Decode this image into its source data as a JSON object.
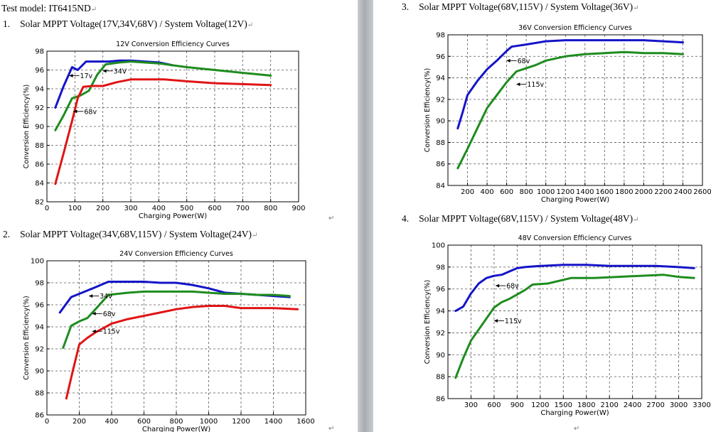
{
  "document": {
    "test_model": "Test model: IT6415ND",
    "para_mark": "↵",
    "sections": [
      {
        "num": "1.",
        "heading": "Solar MPPT Voltage(17V,34V,68V) / System Voltage(12V)"
      },
      {
        "num": "2.",
        "heading": "Solar MPPT Voltage(34V,68V,115V) / System Voltage(24V)"
      },
      {
        "num": "3.",
        "heading": "Solar MPPT Voltage(68V,115V) / System Voltage(36V)"
      },
      {
        "num": "4.",
        "heading": "Solar MPPT Voltage(68V,115V) / System Voltage(48V)"
      }
    ]
  },
  "chart_data": [
    {
      "type": "line",
      "title": "12V Conversion Efficiency Curves",
      "xlabel": "Charging Power(W)",
      "ylabel": "Conversion Efficiency(%)",
      "xlim": [
        0,
        900
      ],
      "ylim": [
        82,
        98
      ],
      "xticks": [
        0,
        100,
        200,
        300,
        400,
        500,
        600,
        700,
        800,
        900
      ],
      "yticks": [
        82,
        84,
        86,
        88,
        90,
        92,
        94,
        96,
        98
      ],
      "grid": true,
      "series": [
        {
          "name": "17V",
          "color": "#1414c8",
          "points": [
            [
              30,
              92
            ],
            [
              60,
              94.3
            ],
            [
              90,
              96.3
            ],
            [
              110,
              96.0
            ],
            [
              140,
              96.9
            ],
            [
              170,
              96.9
            ],
            [
              220,
              96.9
            ],
            [
              260,
              97.0
            ],
            [
              300,
              97.0
            ],
            [
              350,
              96.9
            ],
            [
              400,
              96.8
            ],
            [
              450,
              96.5
            ]
          ]
        },
        {
          "name": "34V",
          "color": "#1e8c1e",
          "points": [
            [
              30,
              89.6
            ],
            [
              60,
              91.2
            ],
            [
              90,
              93.0
            ],
            [
              120,
              93.3
            ],
            [
              150,
              93.8
            ],
            [
              180,
              95.5
            ],
            [
              210,
              96.6
            ],
            [
              260,
              96.8
            ],
            [
              300,
              96.9
            ],
            [
              400,
              96.7
            ],
            [
              500,
              96.3
            ],
            [
              600,
              96.0
            ],
            [
              700,
              95.7
            ],
            [
              800,
              95.4
            ]
          ]
        },
        {
          "name": "68V",
          "color": "#e01414",
          "points": [
            [
              30,
              83.9
            ],
            [
              60,
              87.2
            ],
            [
              90,
              90.6
            ],
            [
              110,
              93.0
            ],
            [
              130,
              94.2
            ],
            [
              160,
              94.3
            ],
            [
              200,
              94.3
            ],
            [
              250,
              94.7
            ],
            [
              300,
              95.0
            ],
            [
              350,
              95.0
            ],
            [
              420,
              95.0
            ],
            [
              500,
              94.8
            ],
            [
              600,
              94.6
            ],
            [
              700,
              94.5
            ],
            [
              800,
              94.4
            ]
          ]
        }
      ],
      "annotations": [
        {
          "text": "17v",
          "at": [
            80,
            95.4
          ]
        },
        {
          "text": "34V",
          "at": [
            200,
            95.9
          ]
        },
        {
          "text": "68v",
          "at": [
            95,
            91.6
          ]
        }
      ]
    },
    {
      "type": "line",
      "title": "24V Conversion Efficiency Curves",
      "xlabel": "Charging Power(W)",
      "ylabel": "Conversion Efficiency(%)",
      "xlim": [
        0,
        1600
      ],
      "ylim": [
        86,
        100
      ],
      "xticks": [
        0,
        200,
        400,
        600,
        800,
        1000,
        1200,
        1400,
        1600
      ],
      "yticks": [
        86,
        88,
        90,
        92,
        94,
        96,
        98,
        100
      ],
      "grid": true,
      "series": [
        {
          "name": "34V",
          "color": "#1414c8",
          "points": [
            [
              80,
              95.3
            ],
            [
              150,
              96.7
            ],
            [
              200,
              97.0
            ],
            [
              250,
              97.3
            ],
            [
              300,
              97.6
            ],
            [
              380,
              98.1
            ],
            [
              500,
              98.1
            ],
            [
              600,
              98.1
            ],
            [
              700,
              98.0
            ],
            [
              800,
              98.0
            ],
            [
              900,
              97.8
            ],
            [
              1000,
              97.5
            ],
            [
              1100,
              97.1
            ],
            [
              1200,
              97.0
            ],
            [
              1300,
              96.9
            ],
            [
              1400,
              96.8
            ],
            [
              1500,
              96.7
            ]
          ]
        },
        {
          "name": "68V",
          "color": "#1e8c1e",
          "points": [
            [
              100,
              92.1
            ],
            [
              150,
              94.1
            ],
            [
              200,
              94.5
            ],
            [
              250,
              94.8
            ],
            [
              300,
              95.6
            ],
            [
              380,
              96.9
            ],
            [
              500,
              97.1
            ],
            [
              600,
              97.2
            ],
            [
              700,
              97.2
            ],
            [
              800,
              97.2
            ],
            [
              900,
              97.2
            ],
            [
              1000,
              97.1
            ],
            [
              1100,
              97.0
            ],
            [
              1200,
              97.0
            ],
            [
              1300,
              96.9
            ],
            [
              1400,
              96.9
            ],
            [
              1500,
              96.8
            ]
          ]
        },
        {
          "name": "115V",
          "color": "#e01414",
          "points": [
            [
              120,
              87.5
            ],
            [
              160,
              90.0
            ],
            [
              200,
              92.4
            ],
            [
              250,
              93.0
            ],
            [
              300,
              93.5
            ],
            [
              400,
              94.3
            ],
            [
              500,
              94.7
            ],
            [
              600,
              95.0
            ],
            [
              700,
              95.3
            ],
            [
              800,
              95.6
            ],
            [
              900,
              95.8
            ],
            [
              1000,
              95.9
            ],
            [
              1100,
              95.9
            ],
            [
              1200,
              95.7
            ],
            [
              1300,
              95.7
            ],
            [
              1400,
              95.7
            ],
            [
              1550,
              95.6
            ]
          ]
        }
      ],
      "annotations": [
        {
          "text": "34v",
          "at": [
            260,
            96.8
          ]
        },
        {
          "text": "68v",
          "at": [
            280,
            95.2
          ]
        },
        {
          "text": "115v",
          "at": [
            280,
            93.6
          ]
        }
      ]
    },
    {
      "type": "line",
      "title": "36V Conversion Efficiency Curves",
      "xlabel": "Charging Power(W)",
      "ylabel": "Conversion Efficiency(%)",
      "xlim": [
        0,
        2600
      ],
      "ylim": [
        84,
        98
      ],
      "xticks": [
        200,
        400,
        600,
        800,
        1000,
        1200,
        1400,
        1600,
        1800,
        2000,
        2200,
        2400,
        2600
      ],
      "yticks": [
        84,
        86,
        88,
        90,
        92,
        94,
        96,
        98
      ],
      "grid": true,
      "series": [
        {
          "name": "68V",
          "color": "#1414c8",
          "points": [
            [
              100,
              89.3
            ],
            [
              150,
              90.8
            ],
            [
              200,
              92.4
            ],
            [
              300,
              93.7
            ],
            [
              400,
              94.8
            ],
            [
              500,
              95.6
            ],
            [
              600,
              96.5
            ],
            [
              650,
              96.9
            ],
            [
              800,
              97.1
            ],
            [
              1000,
              97.4
            ],
            [
              1200,
              97.5
            ],
            [
              1400,
              97.5
            ],
            [
              1600,
              97.5
            ],
            [
              1800,
              97.5
            ],
            [
              2000,
              97.5
            ],
            [
              2200,
              97.4
            ],
            [
              2400,
              97.3
            ]
          ]
        },
        {
          "name": "115V",
          "color": "#1e8c1e",
          "points": [
            [
              100,
              85.6
            ],
            [
              200,
              87.4
            ],
            [
              300,
              89.3
            ],
            [
              400,
              91.2
            ],
            [
              500,
              92.4
            ],
            [
              600,
              93.6
            ],
            [
              700,
              94.6
            ],
            [
              800,
              94.9
            ],
            [
              900,
              95.2
            ],
            [
              1000,
              95.6
            ],
            [
              1200,
              96.0
            ],
            [
              1400,
              96.2
            ],
            [
              1600,
              96.3
            ],
            [
              1800,
              96.4
            ],
            [
              2000,
              96.3
            ],
            [
              2200,
              96.3
            ],
            [
              2400,
              96.2
            ]
          ]
        }
      ],
      "annotations": [
        {
          "text": "68v",
          "at": [
            600,
            95.6
          ]
        },
        {
          "text": "115v",
          "at": [
            700,
            93.4
          ]
        }
      ]
    },
    {
      "type": "line",
      "title": "48V Conversion Efficiency Curves",
      "xlabel": "Charging Power(W)",
      "ylabel": "Conversion Efficiency(%)",
      "xlim": [
        0,
        3300
      ],
      "ylim": [
        86,
        100
      ],
      "xticks": [
        300,
        600,
        900,
        1200,
        1500,
        1800,
        2100,
        2400,
        2700,
        3000,
        3300
      ],
      "yticks": [
        86,
        88,
        90,
        92,
        94,
        96,
        98,
        100
      ],
      "grid": true,
      "series": [
        {
          "name": "68V",
          "color": "#1414c8",
          "points": [
            [
              100,
              94.0
            ],
            [
              200,
              94.4
            ],
            [
              300,
              95.6
            ],
            [
              400,
              96.5
            ],
            [
              500,
              97.0
            ],
            [
              600,
              97.2
            ],
            [
              700,
              97.3
            ],
            [
              800,
              97.6
            ],
            [
              900,
              97.9
            ],
            [
              1000,
              98.0
            ],
            [
              1200,
              98.1
            ],
            [
              1500,
              98.2
            ],
            [
              1800,
              98.2
            ],
            [
              2100,
              98.1
            ],
            [
              2400,
              98.1
            ],
            [
              2700,
              98.1
            ],
            [
              3000,
              98.0
            ],
            [
              3200,
              97.9
            ]
          ]
        },
        {
          "name": "115V",
          "color": "#1e8c1e",
          "points": [
            [
              100,
              87.9
            ],
            [
              200,
              89.7
            ],
            [
              300,
              91.3
            ],
            [
              400,
              92.3
            ],
            [
              500,
              93.3
            ],
            [
              600,
              94.3
            ],
            [
              700,
              94.8
            ],
            [
              800,
              95.1
            ],
            [
              900,
              95.5
            ],
            [
              1000,
              95.9
            ],
            [
              1100,
              96.4
            ],
            [
              1300,
              96.5
            ],
            [
              1600,
              97.0
            ],
            [
              1900,
              97.0
            ],
            [
              2200,
              97.1
            ],
            [
              2500,
              97.2
            ],
            [
              2800,
              97.3
            ],
            [
              3000,
              97.1
            ],
            [
              3200,
              97.0
            ]
          ]
        }
      ],
      "annotations": [
        {
          "text": "68v",
          "at": [
            620,
            96.3
          ]
        },
        {
          "text": "115v",
          "at": [
            600,
            93.1
          ]
        }
      ]
    }
  ]
}
